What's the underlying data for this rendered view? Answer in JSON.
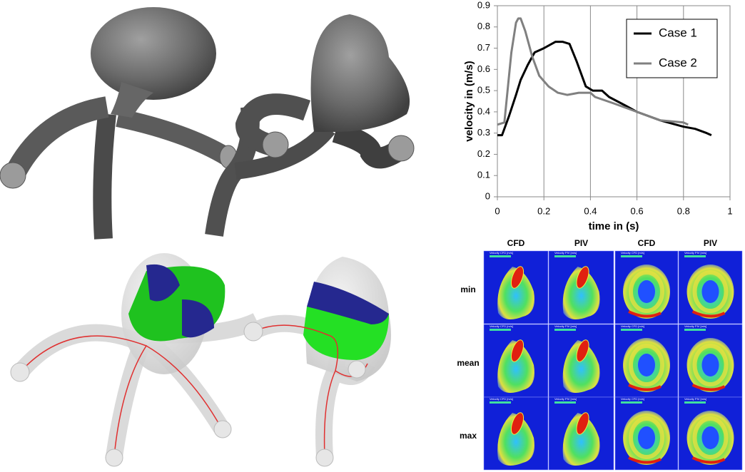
{
  "chart_data": {
    "type": "line",
    "xlabel": "time in (s)",
    "ylabel": "velocity in (m/s)",
    "xlim": [
      0,
      1
    ],
    "xticks": [
      0,
      0.2,
      0.4,
      0.6,
      0.8,
      1
    ],
    "ylim": [
      0,
      0.9
    ],
    "yticks": [
      0,
      0.1,
      0.2,
      0.3,
      0.4,
      0.5,
      0.6,
      0.7,
      0.8,
      0.9
    ],
    "grid": "x",
    "legend": "upper right",
    "series": [
      {
        "name": "Case 1",
        "color": "#000000",
        "x": [
          0,
          0.02,
          0.05,
          0.08,
          0.1,
          0.13,
          0.16,
          0.2,
          0.25,
          0.28,
          0.31,
          0.34,
          0.38,
          0.41,
          0.45,
          0.48,
          0.55,
          0.6,
          0.7,
          0.8,
          0.85,
          0.9,
          0.92
        ],
        "values": [
          0.29,
          0.29,
          0.38,
          0.48,
          0.55,
          0.62,
          0.68,
          0.7,
          0.73,
          0.73,
          0.72,
          0.64,
          0.52,
          0.5,
          0.5,
          0.47,
          0.43,
          0.4,
          0.36,
          0.33,
          0.32,
          0.3,
          0.29
        ]
      },
      {
        "name": "Case 2",
        "color": "#808080",
        "x": [
          0,
          0.03,
          0.06,
          0.08,
          0.09,
          0.1,
          0.12,
          0.15,
          0.18,
          0.22,
          0.26,
          0.3,
          0.35,
          0.4,
          0.42,
          0.5,
          0.6,
          0.7,
          0.8,
          0.82
        ],
        "values": [
          0.34,
          0.35,
          0.68,
          0.82,
          0.84,
          0.84,
          0.78,
          0.66,
          0.57,
          0.52,
          0.49,
          0.48,
          0.49,
          0.49,
          0.47,
          0.44,
          0.4,
          0.36,
          0.35,
          0.34
        ]
      }
    ]
  },
  "panel_grid": {
    "columns": [
      "CFD",
      "PIV",
      "CFD",
      "PIV"
    ],
    "rows": [
      "min",
      "mean",
      "max"
    ],
    "scale_titles": [
      "Velocity CFD [m/s]",
      "Velocity PIV [m/s]",
      "Velocity CFD [m/s]",
      "Velocity PIV [m/s]"
    ]
  }
}
